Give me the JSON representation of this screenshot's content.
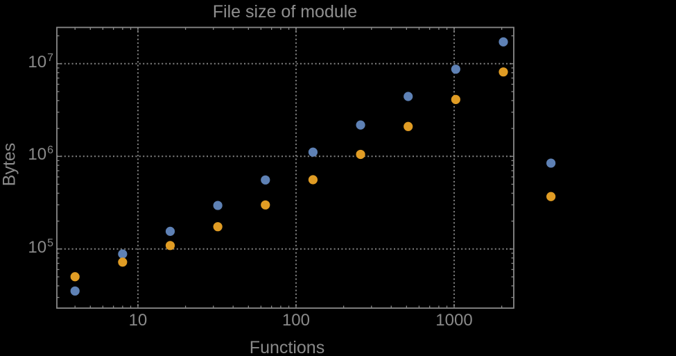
{
  "chart_data": {
    "type": "scatter",
    "title": "File size of module",
    "xlabel": "Functions",
    "ylabel": "Bytes",
    "x_scale": "log",
    "y_scale": "log",
    "xlim": [
      3.07,
      2383
    ],
    "ylim": [
      23000,
      24650000
    ],
    "grid": "dotted gray lines at decades, inside frame only",
    "legend_position": "none",
    "background_color": "#000000",
    "frame_color": "#8a8a8a",
    "grid_color": "#838383",
    "text_color": "#8a8a8a",
    "marker_radius_px": 6.6,
    "x": [
      4,
      8,
      16,
      32,
      64,
      128,
      256,
      512,
      1024,
      2048,
      4096
    ],
    "series": [
      {
        "name": "blue",
        "color": "#5E81B5",
        "values": [
          35200,
          88300,
          155000,
          295000,
          556000,
          1110000,
          2180000,
          4430000,
          8730000,
          17200000,
          845000
        ]
      },
      {
        "name": "orange",
        "color": "#E09C24",
        "values": [
          50200,
          72100,
          109000,
          174000,
          299000,
          559000,
          1050000,
          2100000,
          4110000,
          8150000,
          368000
        ]
      }
    ],
    "x_ticks": [
      {
        "value": 10,
        "label": "10"
      },
      {
        "value": 100,
        "label": "100"
      },
      {
        "value": 1000,
        "label": "1000"
      }
    ],
    "y_ticks": [
      {
        "value": 100000,
        "base": "10",
        "exp": "5"
      },
      {
        "value": 1000000,
        "base": "10",
        "exp": "6"
      },
      {
        "value": 10000000,
        "base": "10",
        "exp": "7"
      }
    ]
  }
}
